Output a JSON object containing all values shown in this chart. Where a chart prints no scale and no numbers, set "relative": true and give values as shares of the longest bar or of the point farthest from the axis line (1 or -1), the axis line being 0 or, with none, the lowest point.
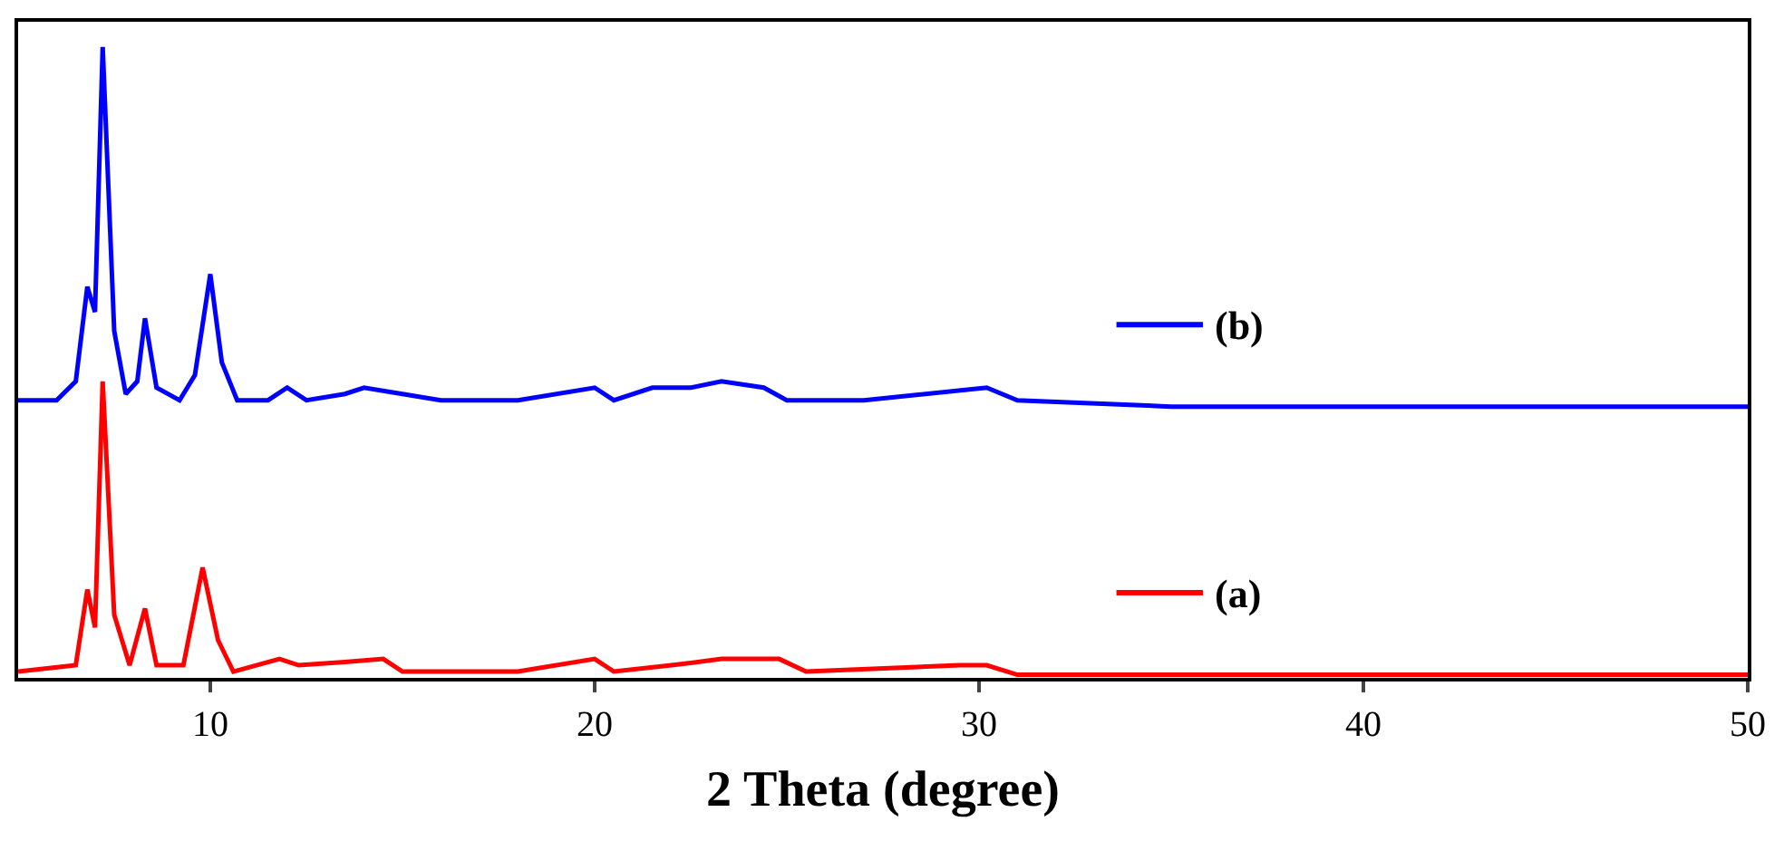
{
  "chart_data": {
    "type": "line",
    "relative": true,
    "xlabel": "2 Theta (degree)",
    "xlim": [
      5,
      50
    ],
    "xticks": [
      10,
      20,
      30,
      40,
      50
    ],
    "tick_labels": "x",
    "legend": "right",
    "marker": "none",
    "line_style": "solid",
    "series": [
      {
        "name": "(a)",
        "color": "#ff0000",
        "x": [
          5.0,
          6.5,
          6.8,
          7.0,
          7.2,
          7.5,
          7.9,
          8.3,
          8.6,
          9.3,
          9.8,
          10.2,
          10.6,
          11.8,
          12.3,
          13.5,
          14.5,
          15,
          18,
          20,
          20.5,
          22,
          23.3,
          24.8,
          25.5,
          29.5,
          30.2,
          31,
          40,
          50
        ],
        "values": [
          0.01,
          0.02,
          0.14,
          0.08,
          0.47,
          0.1,
          0.02,
          0.11,
          0.02,
          0.02,
          0.175,
          0.06,
          0.01,
          0.03,
          0.02,
          0.025,
          0.03,
          0.01,
          0.01,
          0.03,
          0.01,
          0.02,
          0.03,
          0.03,
          0.01,
          0.02,
          0.02,
          0.005,
          0.005,
          0.005
        ]
      },
      {
        "name": "(b)",
        "color": "#0000ff",
        "x": [
          5.0,
          6.0,
          6.5,
          6.8,
          7.0,
          7.2,
          7.5,
          7.8,
          8.1,
          8.3,
          8.6,
          9.2,
          9.6,
          10.0,
          10.3,
          10.7,
          11.5,
          12.0,
          12.5,
          13.5,
          14.0,
          15,
          16,
          18,
          20,
          20.5,
          21.5,
          22.5,
          23.3,
          24.4,
          25,
          27,
          30.2,
          31,
          35,
          40,
          45,
          50
        ],
        "values": [
          0.44,
          0.44,
          0.47,
          0.62,
          0.58,
          1.0,
          0.55,
          0.45,
          0.47,
          0.57,
          0.46,
          0.44,
          0.48,
          0.64,
          0.5,
          0.44,
          0.44,
          0.46,
          0.44,
          0.45,
          0.46,
          0.45,
          0.44,
          0.44,
          0.46,
          0.44,
          0.46,
          0.46,
          0.47,
          0.46,
          0.44,
          0.44,
          0.46,
          0.44,
          0.43,
          0.43,
          0.43,
          0.43
        ]
      }
    ]
  }
}
